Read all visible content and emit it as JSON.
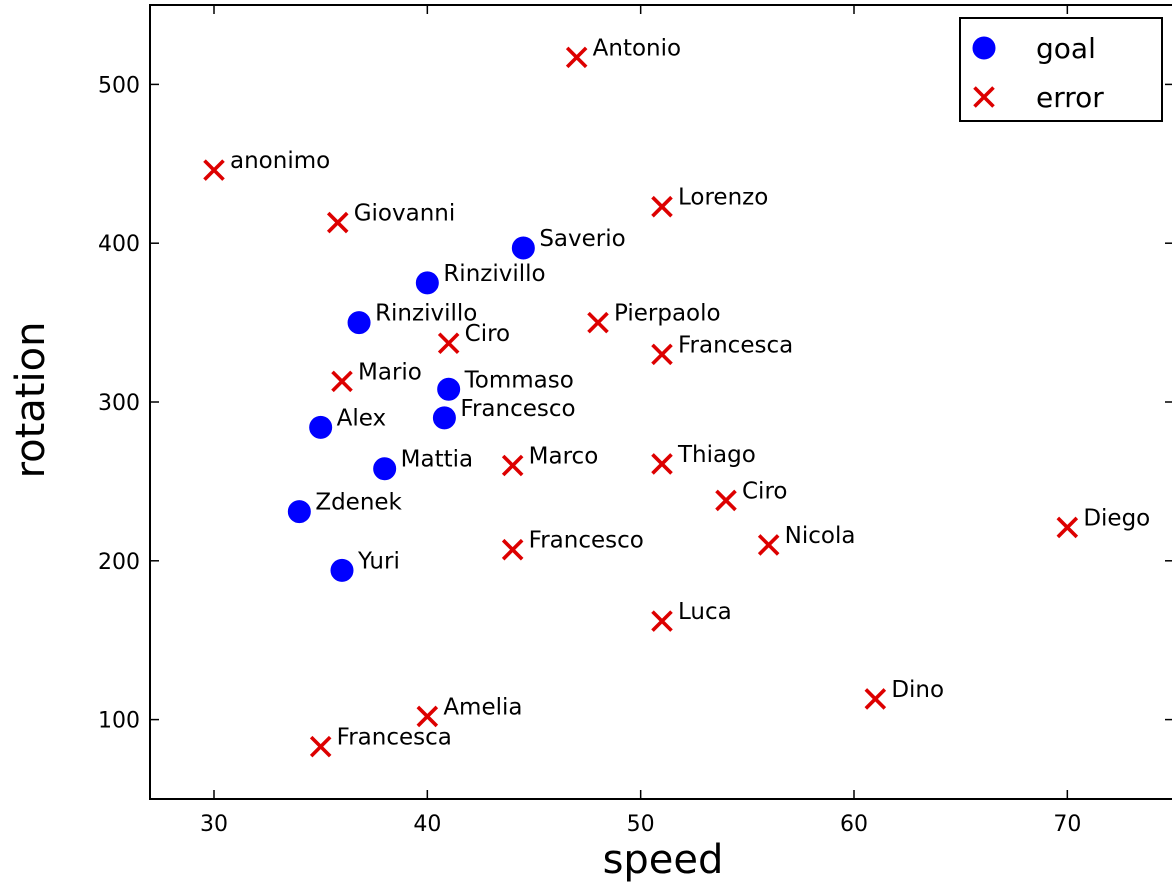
{
  "chart_data": {
    "type": "scatter",
    "title": "",
    "xlabel": "speed",
    "ylabel": "rotation",
    "xlim": [
      27,
      75
    ],
    "ylim": [
      50,
      550
    ],
    "xticks": [
      30,
      40,
      50,
      60,
      70
    ],
    "yticks": [
      100,
      200,
      300,
      400,
      500
    ],
    "grid": false,
    "legend_position": "top-right",
    "series": [
      {
        "name": "goal",
        "marker": "circle",
        "color": "#0000ff",
        "points": [
          {
            "x": 44.5,
            "y": 397,
            "label": "Saverio"
          },
          {
            "x": 40,
            "y": 375,
            "label": "Rinzivillo"
          },
          {
            "x": 36.8,
            "y": 350,
            "label": "Rinzivillo"
          },
          {
            "x": 41,
            "y": 308,
            "label": "Tommaso"
          },
          {
            "x": 40.8,
            "y": 290,
            "label": "Francesco"
          },
          {
            "x": 35,
            "y": 284,
            "label": "Alex"
          },
          {
            "x": 38,
            "y": 258,
            "label": "Mattia"
          },
          {
            "x": 34,
            "y": 231,
            "label": "Zdenek"
          },
          {
            "x": 36,
            "y": 194,
            "label": "Yuri"
          }
        ]
      },
      {
        "name": "error",
        "marker": "x",
        "color": "#dd0000",
        "points": [
          {
            "x": 47,
            "y": 517,
            "label": "Antonio"
          },
          {
            "x": 30,
            "y": 446,
            "label": "anonimo"
          },
          {
            "x": 51,
            "y": 423,
            "label": "Lorenzo"
          },
          {
            "x": 35.8,
            "y": 413,
            "label": "Giovanni"
          },
          {
            "x": 48,
            "y": 350,
            "label": "Pierpaolo"
          },
          {
            "x": 41,
            "y": 337,
            "label": "Ciro"
          },
          {
            "x": 51,
            "y": 330,
            "label": "Francesca"
          },
          {
            "x": 36,
            "y": 313,
            "label": "Mario"
          },
          {
            "x": 44,
            "y": 260,
            "label": "Marco"
          },
          {
            "x": 51,
            "y": 261,
            "label": "Thiago"
          },
          {
            "x": 54,
            "y": 238,
            "label": "Ciro"
          },
          {
            "x": 70,
            "y": 221,
            "label": "Diego"
          },
          {
            "x": 56,
            "y": 210,
            "label": "Nicola"
          },
          {
            "x": 44,
            "y": 207,
            "label": "Francesco"
          },
          {
            "x": 51,
            "y": 162,
            "label": "Luca"
          },
          {
            "x": 61,
            "y": 113,
            "label": "Dino"
          },
          {
            "x": 40,
            "y": 102,
            "label": "Amelia"
          },
          {
            "x": 35,
            "y": 83,
            "label": "Francesca"
          }
        ]
      }
    ]
  }
}
